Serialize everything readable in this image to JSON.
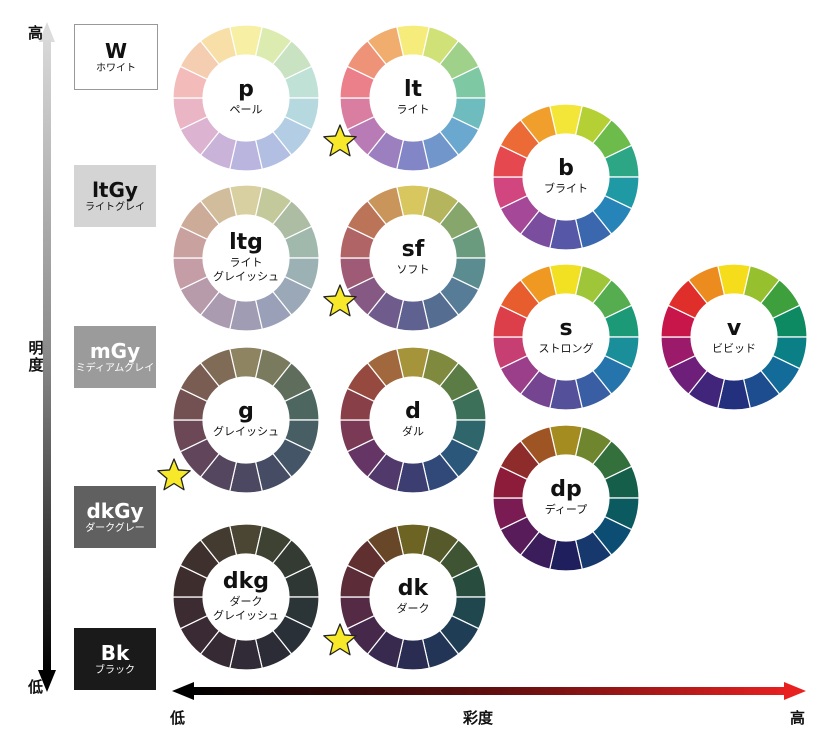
{
  "axes": {
    "vertical": {
      "title": "明度",
      "high": "高",
      "low": "低"
    },
    "horizontal": {
      "title": "彩度",
      "low": "低",
      "high": "高"
    }
  },
  "grays": [
    {
      "abbr": "W",
      "name": "ホワイト",
      "bg": "#ffffff",
      "fg": "#111111"
    },
    {
      "abbr": "ltGy",
      "name": "ライトグレイ",
      "bg": "#d4d4d4",
      "fg": "#111111"
    },
    {
      "abbr": "mGy",
      "name": "ミディアムグレイ",
      "bg": "#9b9b9b",
      "fg": "#ffffff"
    },
    {
      "abbr": "dkGy",
      "name": "ダークグレー",
      "bg": "#606060",
      "fg": "#ffffff"
    },
    {
      "abbr": "Bk",
      "name": "ブラック",
      "bg": "#1a1a1a",
      "fg": "#ffffff"
    }
  ],
  "tones": [
    {
      "abbr": "p",
      "name": "ペール",
      "star": false,
      "colors": [
        "#f6efa4",
        "#dcecb0",
        "#c9e2c2",
        "#bfe1d6",
        "#b6d9e0",
        "#b3cde4",
        "#b3bfe2",
        "#b9b5de",
        "#c9b3d9",
        "#dcb3d1",
        "#eab5c4",
        "#f3bcba",
        "#f5cdb0",
        "#f7dfa7"
      ]
    },
    {
      "abbr": "lt",
      "name": "ライト",
      "star": true,
      "colors": [
        "#f6ec7c",
        "#cfe177",
        "#9fd18a",
        "#7ec8a4",
        "#6fbcbe",
        "#6aa8cf",
        "#7196cc",
        "#8286c6",
        "#9c7fbf",
        "#b87bb5",
        "#d97ea0",
        "#eb808a",
        "#ee9378",
        "#f1ad6e"
      ]
    },
    {
      "abbr": "b",
      "name": "ブライト",
      "star": false,
      "colors": [
        "#f3e638",
        "#b4d034",
        "#6cbb4b",
        "#2ca684",
        "#1f9aa4",
        "#2784b8",
        "#3a67ad",
        "#5657a6",
        "#7b4d9e",
        "#a54897",
        "#d1467f",
        "#e6484f",
        "#ec6a36",
        "#f09f2c"
      ]
    },
    {
      "abbr": "ltg",
      "name": "ライト\nグレイッシュ",
      "star": false,
      "colors": [
        "#d8d0a0",
        "#c4c99b",
        "#acbda3",
        "#a1b9ad",
        "#9cb1b4",
        "#9aa8b7",
        "#9aa0b7",
        "#a09cb4",
        "#ab9bb1",
        "#b89bab",
        "#c49da6",
        "#c9a29f",
        "#ccab99",
        "#d1bd9b"
      ]
    },
    {
      "abbr": "sf",
      "name": "ソフト",
      "star": true,
      "colors": [
        "#d8c75f",
        "#b5b55d",
        "#86a66b",
        "#6b9b7f",
        "#5b8c8f",
        "#567c98",
        "#566d92",
        "#5f6190",
        "#705c8c",
        "#865985",
        "#9f5b76",
        "#b06466",
        "#bc7459",
        "#c9955b"
      ]
    },
    {
      "abbr": "s",
      "name": "ストロング",
      "star": false,
      "colors": [
        "#f2e022",
        "#9ec638",
        "#55ad4f",
        "#1c9a78",
        "#1b8f99",
        "#2574ab",
        "#3a5ea4",
        "#55509a",
        "#754591",
        "#9c3f8a",
        "#c73e72",
        "#dc3e4a",
        "#e75d2e",
        "#ef9923"
      ]
    },
    {
      "abbr": "v",
      "name": "ビビッド",
      "star": false,
      "colors": [
        "#f5dd1c",
        "#97c02e",
        "#3e9f3d",
        "#0d8a62",
        "#0a7f86",
        "#126b99",
        "#1d4c8f",
        "#23307d",
        "#40257a",
        "#6e1f7a",
        "#9c1a6a",
        "#c8164a",
        "#e02e2a",
        "#ec8c1f"
      ]
    },
    {
      "abbr": "g",
      "name": "グレイッシュ",
      "star": true,
      "colors": [
        "#8e8461",
        "#7a7a5e",
        "#5f6e5c",
        "#4e6660",
        "#475e64",
        "#445567",
        "#454c64",
        "#4c4861",
        "#554660",
        "#60455b",
        "#6c4857",
        "#735152",
        "#795c52",
        "#806b57"
      ]
    },
    {
      "abbr": "d",
      "name": "ダル",
      "star": false,
      "colors": [
        "#a6943b",
        "#7f8a3e",
        "#5b7d45",
        "#3c7058",
        "#2e666c",
        "#2b577b",
        "#304979",
        "#3c3e72",
        "#52396c",
        "#653565",
        "#7a3a56",
        "#893f48",
        "#964a3f",
        "#a0683c"
      ]
    },
    {
      "abbr": "dp",
      "name": "ディープ",
      "star": false,
      "colors": [
        "#a58c21",
        "#6f862f",
        "#33703c",
        "#155e4a",
        "#0a5a60",
        "#0b4d73",
        "#17386c",
        "#201f5e",
        "#3a1d5a",
        "#581c5a",
        "#7a1b53",
        "#8c1c3a",
        "#8e2c2b",
        "#9f5423"
      ]
    },
    {
      "abbr": "dkg",
      "name": "ダーク\nグレイッシュ",
      "star": false,
      "colors": [
        "#4a4633",
        "#3e4232",
        "#333b32",
        "#2e3734",
        "#2b3437",
        "#2a3038",
        "#2c2c37",
        "#302b36",
        "#362a35",
        "#3a2a33",
        "#3c2b30",
        "#3d2d2d",
        "#3e312d",
        "#433b2f"
      ]
    },
    {
      "abbr": "dk",
      "name": "ダーク",
      "star": true,
      "colors": [
        "#6d6424",
        "#56592a",
        "#3e5432",
        "#284c3e",
        "#1f474d",
        "#1f3e56",
        "#233557",
        "#2b2c52",
        "#382a4e",
        "#46284b",
        "#552a44",
        "#5c2c38",
        "#602f2f",
        "#674727"
      ]
    }
  ]
}
